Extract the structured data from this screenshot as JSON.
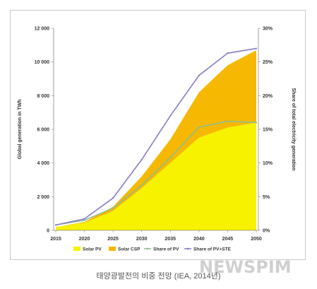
{
  "chart_data": {
    "type": "area",
    "x": [
      2015,
      2020,
      2025,
      2030,
      2035,
      2040,
      2045,
      2050
    ],
    "y_left": {
      "label": "Global generation in TWh",
      "ylim": [
        0,
        12000
      ],
      "ticks": [
        "0",
        "2 000",
        "4 000",
        "6 000",
        "8 000",
        "10 000",
        "12 000"
      ],
      "tick_values": [
        0,
        2000,
        4000,
        6000,
        8000,
        10000,
        12000
      ]
    },
    "y_right": {
      "label": "Share of total electricity generation",
      "ylim": [
        0,
        30
      ],
      "ticks": [
        "0%",
        "5%",
        "10%",
        "15%",
        "20%",
        "25%",
        "30%"
      ],
      "tick_values": [
        0,
        5,
        10,
        15,
        20,
        25,
        30
      ]
    },
    "series": [
      {
        "name": "Solar PV",
        "kind": "area",
        "axis": "left",
        "color": "#f6f200",
        "values": [
          200,
          450,
          1150,
          2500,
          4000,
          5500,
          6100,
          6400
        ]
      },
      {
        "name": "Solar CSP",
        "kind": "area-stacked",
        "axis": "left",
        "color": "#f6b800",
        "values": [
          0,
          50,
          250,
          700,
          1400,
          2700,
          3700,
          4300
        ]
      },
      {
        "name": "Share of PV",
        "kind": "line",
        "axis": "right",
        "color": "#8fbf8f",
        "values": [
          0.8,
          1.5,
          3.3,
          6.7,
          10.8,
          15.3,
          16.2,
          16.0
        ]
      },
      {
        "name": "Share of PV+STE",
        "kind": "line",
        "axis": "right",
        "color": "#8a7bc8",
        "values": [
          0.8,
          1.7,
          4.8,
          10.5,
          17.0,
          23.0,
          26.3,
          27.0
        ]
      }
    ],
    "grid": false,
    "legend_position": "bottom"
  },
  "caption": "태양광발전의 비중 전망 (IEA, 2014년)",
  "watermark": "NEWSPIM"
}
